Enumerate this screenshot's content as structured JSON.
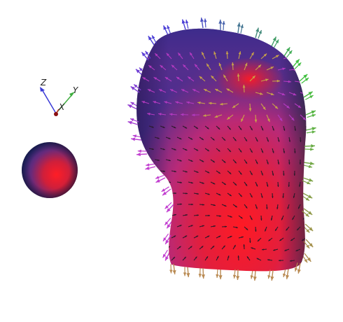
{
  "axes": {
    "x": {
      "label": "X",
      "color": "#cc2b2b"
    },
    "y": {
      "label": "Y",
      "color": "#3fae3f"
    },
    "z": {
      "label": "Z",
      "color": "#3a3ad6"
    }
  },
  "colors": {
    "background": "#ffffff",
    "surface_red": "#ee1c2a",
    "surface_blue": "#2e2a8c",
    "surface_magenta": "#b02a8a",
    "arrow_top": "#4b3fd6",
    "arrow_right": "#3fbf3f",
    "arrow_left": "#c23fd0",
    "arrow_bottom": "#b98a52"
  }
}
